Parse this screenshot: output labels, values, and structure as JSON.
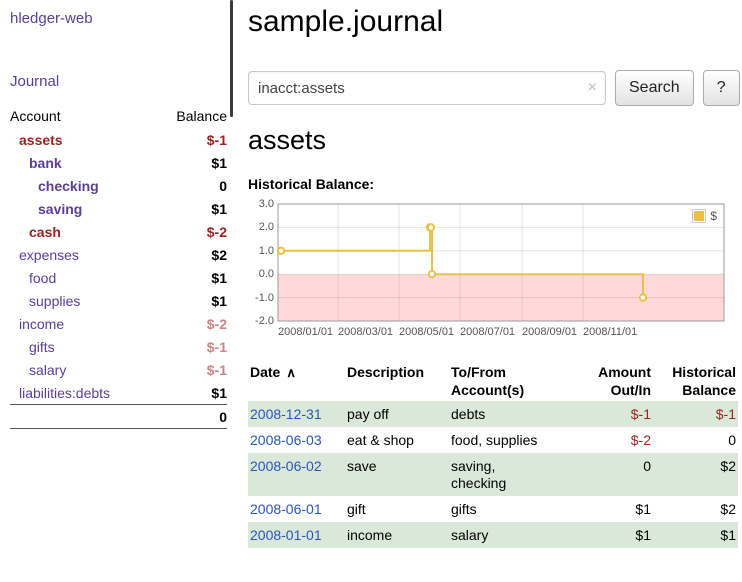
{
  "app": {
    "brand": "hledger-web",
    "nav": {
      "journal": "Journal"
    }
  },
  "sidebar": {
    "columns": {
      "account": "Account",
      "balance": "Balance"
    },
    "accounts": [
      {
        "name": "assets",
        "depth": 1,
        "bold": true,
        "name_style": "red",
        "balance": "$-1",
        "bal_style": "red"
      },
      {
        "name": "bank",
        "depth": 2,
        "bold": true,
        "name_style": "",
        "balance": "$1",
        "bal_style": ""
      },
      {
        "name": "checking",
        "depth": 3,
        "bold": true,
        "name_style": "",
        "balance": "0",
        "bal_style": ""
      },
      {
        "name": "saving",
        "depth": 3,
        "bold": true,
        "name_style": "",
        "balance": "$1",
        "bal_style": ""
      },
      {
        "name": "cash",
        "depth": 2,
        "bold": true,
        "name_style": "red",
        "balance": "$-2",
        "bal_style": "red"
      },
      {
        "name": "expenses",
        "depth": 1,
        "bold": false,
        "name_style": "",
        "balance": "$2",
        "bal_style": ""
      },
      {
        "name": "food",
        "depth": 2,
        "bold": false,
        "name_style": "",
        "balance": "$1",
        "bal_style": ""
      },
      {
        "name": "supplies",
        "depth": 2,
        "bold": false,
        "name_style": "",
        "balance": "$1",
        "bal_style": ""
      },
      {
        "name": "income",
        "depth": 1,
        "bold": false,
        "name_style": "",
        "balance": "$-2",
        "bal_style": "rose"
      },
      {
        "name": "gifts",
        "depth": 2,
        "bold": false,
        "name_style": "",
        "balance": "$-1",
        "bal_style": "rose"
      },
      {
        "name": "salary",
        "depth": 2,
        "bold": false,
        "name_style": "",
        "balance": "$-1",
        "bal_style": "rose"
      },
      {
        "name": "liabilities:debts",
        "depth": 1,
        "bold": false,
        "name_style": "",
        "balance": "$1",
        "bal_style": ""
      }
    ],
    "total": "0"
  },
  "page": {
    "title": "sample.journal",
    "account_title": "assets",
    "chart_heading": "Historical Balance:"
  },
  "search": {
    "value": "inacct:assets",
    "clear_icon": "×",
    "search_button": "Search",
    "help_button": "?"
  },
  "chart_data": {
    "type": "line",
    "step": true,
    "title": "Historical Balance",
    "xlabel": "",
    "ylabel": "",
    "series": [
      {
        "name": "$",
        "color": "#edc240",
        "points": [
          {
            "date": "2008-01-01",
            "value": 1
          },
          {
            "date": "2008-06-01",
            "value": 2
          },
          {
            "date": "2008-06-02",
            "value": 2
          },
          {
            "date": "2008-06-03",
            "value": 0
          },
          {
            "date": "2008-12-31",
            "value": -1
          }
        ]
      }
    ],
    "ylim": [
      -2.0,
      3.0
    ],
    "y_ticks": [
      3.0,
      2.0,
      1.0,
      0.0,
      -1.0,
      -2.0
    ],
    "x_ticks": [
      {
        "date": "2008-01-01",
        "label": "2008/01/01"
      },
      {
        "date": "2008-03-01",
        "label": "2008/03/01"
      },
      {
        "date": "2008-05-01",
        "label": "2008/05/01"
      },
      {
        "date": "2008-07-01",
        "label": "2008/07/01"
      },
      {
        "date": "2008-09-01",
        "label": "2008/09/01"
      },
      {
        "date": "2008-11-01",
        "label": "2008/11/01"
      }
    ],
    "x_range_days": 446,
    "grid": true,
    "negative_region_color": "#ffd9d9",
    "legend": {
      "label": "$",
      "position": "top-right"
    }
  },
  "register": {
    "columns": {
      "date": "Date",
      "sort_icon": "∧",
      "description": "Description",
      "account_line1": "To/From",
      "account_line2": "Account(s)",
      "amount_line1": "Amount",
      "amount_line2": "Out/In",
      "balance_line1": "Historical",
      "balance_line2": "Balance"
    },
    "rows": [
      {
        "date": "2008-12-31",
        "description": "pay off",
        "accounts": [
          "debts"
        ],
        "amount": "$-1",
        "amount_neg": true,
        "balance": "$-1",
        "balance_neg": true
      },
      {
        "date": "2008-06-03",
        "description": "eat & shop",
        "accounts": [
          "food, supplies"
        ],
        "amount": "$-2",
        "amount_neg": true,
        "balance": "0",
        "balance_neg": false
      },
      {
        "date": "2008-06-02",
        "description": "save",
        "accounts": [
          "saving,",
          "checking"
        ],
        "amount": "0",
        "amount_neg": false,
        "balance": "$2",
        "balance_neg": false
      },
      {
        "date": "2008-06-01",
        "description": "gift",
        "accounts": [
          "gifts"
        ],
        "amount": "$1",
        "amount_neg": false,
        "balance": "$2",
        "balance_neg": false
      },
      {
        "date": "2008-01-01",
        "description": "income",
        "accounts": [
          "salary"
        ],
        "amount": "$1",
        "amount_neg": false,
        "balance": "$1",
        "balance_neg": false
      }
    ]
  },
  "colors": {
    "link_purple": "#5b3d9e",
    "date_blue": "#2a53c0",
    "negative_red": "#a32020",
    "negative_rose": "#c98585",
    "row_stripe_green": "#d9e8d9",
    "chart_series_gold": "#edc240",
    "chart_negative_pink": "#ffd9d9"
  }
}
